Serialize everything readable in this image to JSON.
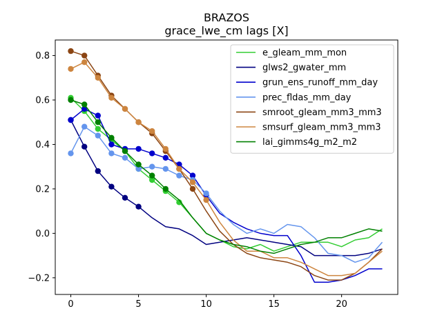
{
  "chart_data": {
    "type": "line",
    "title": "BRAZOS",
    "subtitle": "grace_lwe_cm lags [X]",
    "xlabel": "",
    "ylabel": "",
    "xlim": [
      -1.15,
      24.15
    ],
    "ylim": [
      -0.275,
      0.87
    ],
    "xticks": [
      0,
      5,
      10,
      15,
      20
    ],
    "yticks": [
      -0.2,
      0.0,
      0.2,
      0.4,
      0.6,
      0.8
    ],
    "ytick_labels": [
      "−0.2",
      "0.0",
      "0.2",
      "0.4",
      "0.6",
      "0.8"
    ],
    "legend_position": "top-right",
    "x": [
      0,
      1,
      2,
      3,
      4,
      5,
      6,
      7,
      8,
      9,
      10,
      11,
      12,
      13,
      14,
      15,
      16,
      17,
      18,
      19,
      20,
      21,
      22,
      23
    ],
    "series": [
      {
        "name": "e_gleam_mm_mon",
        "color": "#32cd32",
        "marker_count": 9,
        "values": [
          0.61,
          0.55,
          0.47,
          0.42,
          0.37,
          0.29,
          0.24,
          0.19,
          0.14,
          0.07,
          0.0,
          -0.03,
          -0.06,
          -0.07,
          -0.05,
          -0.08,
          -0.06,
          -0.04,
          -0.04,
          -0.04,
          -0.06,
          -0.03,
          -0.02,
          0.02
        ]
      },
      {
        "name": "glws2_gwater_mm",
        "color": "#000080",
        "marker_count": 6,
        "values": [
          0.51,
          0.39,
          0.28,
          0.21,
          0.16,
          0.12,
          0.07,
          0.03,
          0.02,
          -0.01,
          -0.05,
          -0.04,
          -0.03,
          -0.02,
          -0.03,
          -0.04,
          -0.05,
          -0.06,
          -0.1,
          -0.1,
          -0.1,
          -0.1,
          -0.09,
          -0.07
        ]
      },
      {
        "name": "grun_ens_runoff_mm_day",
        "color": "#0000cd",
        "marker_count": 11,
        "values": [
          0.51,
          0.56,
          0.53,
          0.4,
          0.38,
          0.38,
          0.36,
          0.34,
          0.31,
          0.26,
          0.17,
          0.09,
          0.05,
          0.02,
          0.0,
          -0.01,
          -0.01,
          -0.1,
          -0.22,
          -0.22,
          -0.21,
          -0.19,
          -0.16,
          -0.16
        ]
      },
      {
        "name": "prec_fldas_mm_day",
        "color": "#6495ed",
        "marker_count": 11,
        "values": [
          0.36,
          0.48,
          0.44,
          0.36,
          0.34,
          0.29,
          0.3,
          0.29,
          0.26,
          0.24,
          0.18,
          0.1,
          0.04,
          0.0,
          0.02,
          0.0,
          0.04,
          0.03,
          -0.02,
          -0.09,
          -0.1,
          -0.13,
          -0.11,
          -0.04
        ]
      },
      {
        "name": "smroot_gleam_mm3_mm3",
        "color": "#8b4513",
        "marker_count": 10,
        "values": [
          0.82,
          0.8,
          0.71,
          0.62,
          0.56,
          0.5,
          0.45,
          0.37,
          0.29,
          0.2,
          0.1,
          0.01,
          -0.05,
          -0.09,
          -0.11,
          -0.12,
          -0.13,
          -0.15,
          -0.19,
          -0.21,
          -0.21,
          -0.18,
          -0.13,
          -0.07
        ]
      },
      {
        "name": "smsurf_gleam_mm3_mm3",
        "color": "#cd853f",
        "marker_count": 11,
        "values": [
          0.74,
          0.77,
          0.7,
          0.61,
          0.56,
          0.5,
          0.46,
          0.38,
          0.29,
          0.23,
          0.15,
          0.05,
          -0.03,
          -0.08,
          -0.08,
          -0.11,
          -0.11,
          -0.13,
          -0.16,
          -0.19,
          -0.19,
          -0.18,
          -0.13,
          -0.08
        ]
      },
      {
        "name": "lai_gimms4g_m2_m2",
        "color": "#008000",
        "marker_count": 8,
        "values": [
          0.6,
          0.58,
          0.5,
          0.43,
          0.37,
          0.31,
          0.26,
          0.2,
          0.15,
          0.07,
          0.0,
          -0.03,
          -0.05,
          -0.06,
          -0.08,
          -0.09,
          -0.07,
          -0.05,
          -0.04,
          -0.02,
          -0.02,
          0.0,
          0.02,
          0.01
        ]
      }
    ]
  }
}
